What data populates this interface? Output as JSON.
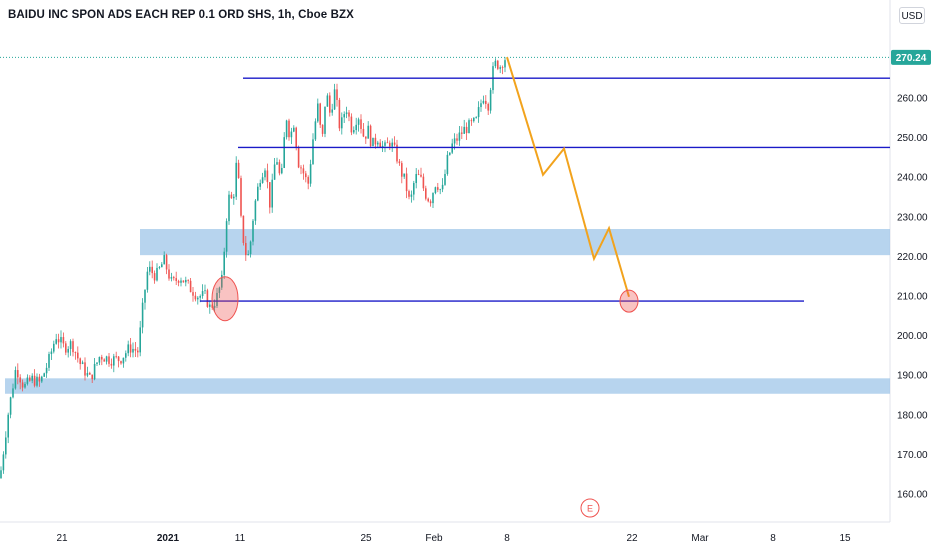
{
  "title": "BAIDU INC SPON ADS EACH REP 0.1 ORD SHS, 1h, Cboe BZX",
  "currency_button": "USD",
  "last_price_label": "270.24",
  "earnings_marker": "E",
  "colors": {
    "up": "#26a69a",
    "down": "#ef5350",
    "hline": "#1a1ac8",
    "zone": "#9fc5e8",
    "projection": "#f2a31d",
    "target": "#ef5350",
    "last_price_line": "#26a69a"
  },
  "chart_data": {
    "type": "candlestick",
    "x_ticks": [
      "21",
      "2021",
      "11",
      "25",
      "Feb",
      "8",
      "22",
      "Mar",
      "8",
      "15"
    ],
    "y_ticks": [
      160,
      170,
      180,
      190,
      200,
      210,
      220,
      230,
      240,
      250,
      260,
      270
    ],
    "ylim": [
      152,
      277
    ],
    "last_price": 270.24,
    "price_path": [
      [
        0,
        164
      ],
      [
        8,
        180
      ],
      [
        16,
        192
      ],
      [
        24,
        187
      ],
      [
        32,
        189
      ],
      [
        40,
        188
      ],
      [
        48,
        193
      ],
      [
        56,
        200
      ],
      [
        64,
        197
      ],
      [
        72,
        198
      ],
      [
        80,
        193
      ],
      [
        90,
        189
      ],
      [
        100,
        195
      ],
      [
        110,
        194
      ],
      [
        120,
        194
      ],
      [
        130,
        197
      ],
      [
        138,
        196
      ],
      [
        144,
        210
      ],
      [
        148,
        217
      ],
      [
        156,
        215
      ],
      [
        164,
        219
      ],
      [
        172,
        213
      ],
      [
        180,
        215
      ],
      [
        190,
        212
      ],
      [
        198,
        210
      ],
      [
        205,
        210
      ],
      [
        210,
        207
      ],
      [
        216,
        209
      ],
      [
        222,
        214
      ],
      [
        228,
        235
      ],
      [
        233,
        234
      ],
      [
        237,
        245
      ],
      [
        241,
        229
      ],
      [
        245,
        221
      ],
      [
        249,
        220
      ],
      [
        254,
        232
      ],
      [
        260,
        240
      ],
      [
        265,
        243
      ],
      [
        270,
        233
      ],
      [
        276,
        246
      ],
      [
        281,
        238
      ],
      [
        286,
        256
      ],
      [
        290,
        250
      ],
      [
        294,
        254
      ],
      [
        298,
        244
      ],
      [
        302,
        242
      ],
      [
        308,
        238
      ],
      [
        314,
        252
      ],
      [
        318,
        258
      ],
      [
        322,
        248
      ],
      [
        326,
        262
      ],
      [
        330,
        256
      ],
      [
        335,
        262
      ],
      [
        340,
        252
      ],
      [
        346,
        258
      ],
      [
        352,
        252
      ],
      [
        358,
        256
      ],
      [
        364,
        250
      ],
      [
        368,
        252
      ],
      [
        372,
        248
      ],
      [
        378,
        250
      ],
      [
        384,
        247
      ],
      [
        390,
        249
      ],
      [
        396,
        246
      ],
      [
        400,
        242
      ],
      [
        405,
        239
      ],
      [
        410,
        233
      ],
      [
        415,
        240
      ],
      [
        420,
        240
      ],
      [
        425,
        236
      ],
      [
        430,
        234
      ],
      [
        436,
        239
      ],
      [
        442,
        236
      ],
      [
        447,
        244
      ],
      [
        452,
        248
      ],
      [
        458,
        250
      ],
      [
        464,
        252
      ],
      [
        470,
        253
      ],
      [
        476,
        254
      ],
      [
        480,
        258
      ],
      [
        484,
        261
      ],
      [
        488,
        258
      ],
      [
        492,
        266
      ],
      [
        496,
        269
      ],
      [
        500,
        268
      ],
      [
        504,
        270
      ],
      [
        507,
        270
      ]
    ],
    "horizontal_levels": [
      {
        "price": 265,
        "x_start": 243,
        "x_end": 890
      },
      {
        "price": 247.5,
        "x_start": 238,
        "x_end": 890
      },
      {
        "price": 208.7,
        "x_start": 200,
        "x_end": 804
      }
    ],
    "zones": [
      {
        "from": 220.3,
        "to": 226.9,
        "x_start": 140,
        "x_end": 890
      },
      {
        "from": 185.3,
        "to": 189.2,
        "x_start": 5,
        "x_end": 890
      }
    ],
    "projection": [
      [
        507,
        270.3
      ],
      [
        543,
        240.6
      ],
      [
        564,
        247.2
      ],
      [
        594,
        219.4
      ],
      [
        609,
        227.1
      ],
      [
        629,
        209.8
      ]
    ],
    "circles": [
      {
        "x": 225,
        "price": 209.3,
        "rx": 13,
        "ry": 22
      },
      {
        "x": 629,
        "price": 208.7,
        "rx": 9,
        "ry": 11
      }
    ]
  }
}
